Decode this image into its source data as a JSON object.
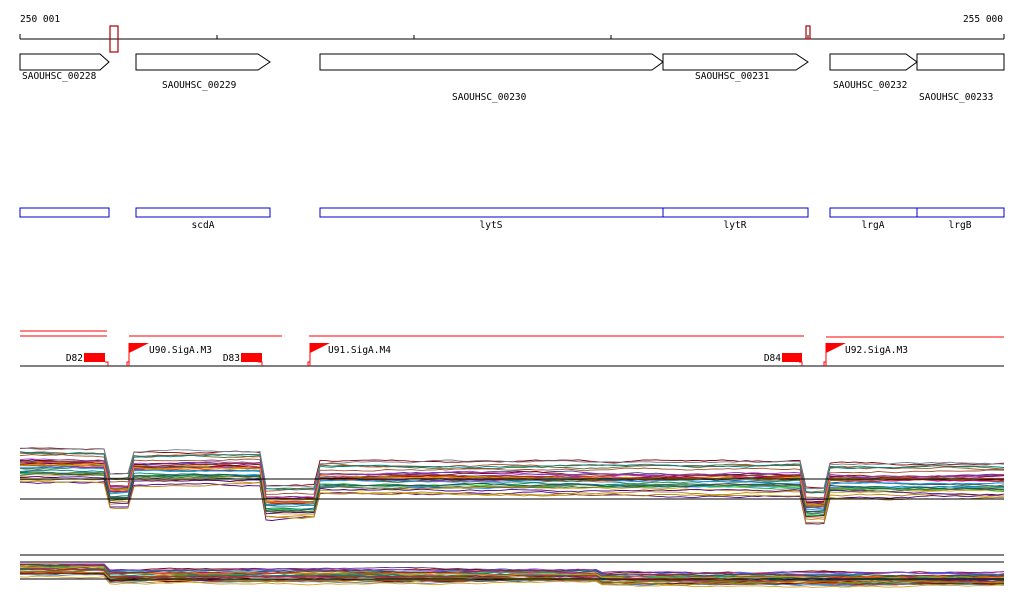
{
  "ruler": {
    "start_label": "250 001",
    "end_label": "255 000"
  },
  "locus_tags": [
    {
      "label": "SAOUHSC_00228"
    },
    {
      "label": "SAOUHSC_00229"
    },
    {
      "label": "SAOUHSC_00230"
    },
    {
      "label": "SAOUHSC_00231"
    },
    {
      "label": "SAOUHSC_00232"
    },
    {
      "label": "SAOUHSC_00233"
    }
  ],
  "gene_names": [
    {
      "label": ""
    },
    {
      "label": "scdA"
    },
    {
      "label": "lytS"
    },
    {
      "label": "lytR"
    },
    {
      "label": "lrgA"
    },
    {
      "label": "lrgB"
    }
  ],
  "terminators": [
    {
      "label": "D82"
    },
    {
      "label": "D83"
    },
    {
      "label": "D84"
    }
  ],
  "promoters": [
    {
      "label": "U90.SigA.M3"
    },
    {
      "label": "U91.SigA.M4"
    },
    {
      "label": "U92.SigA.M3"
    }
  ],
  "colors": {
    "gene_outline": "#000000",
    "gene_name_box": "#0000cc",
    "feature": "#ff0000",
    "marker": "#aa0000"
  }
}
